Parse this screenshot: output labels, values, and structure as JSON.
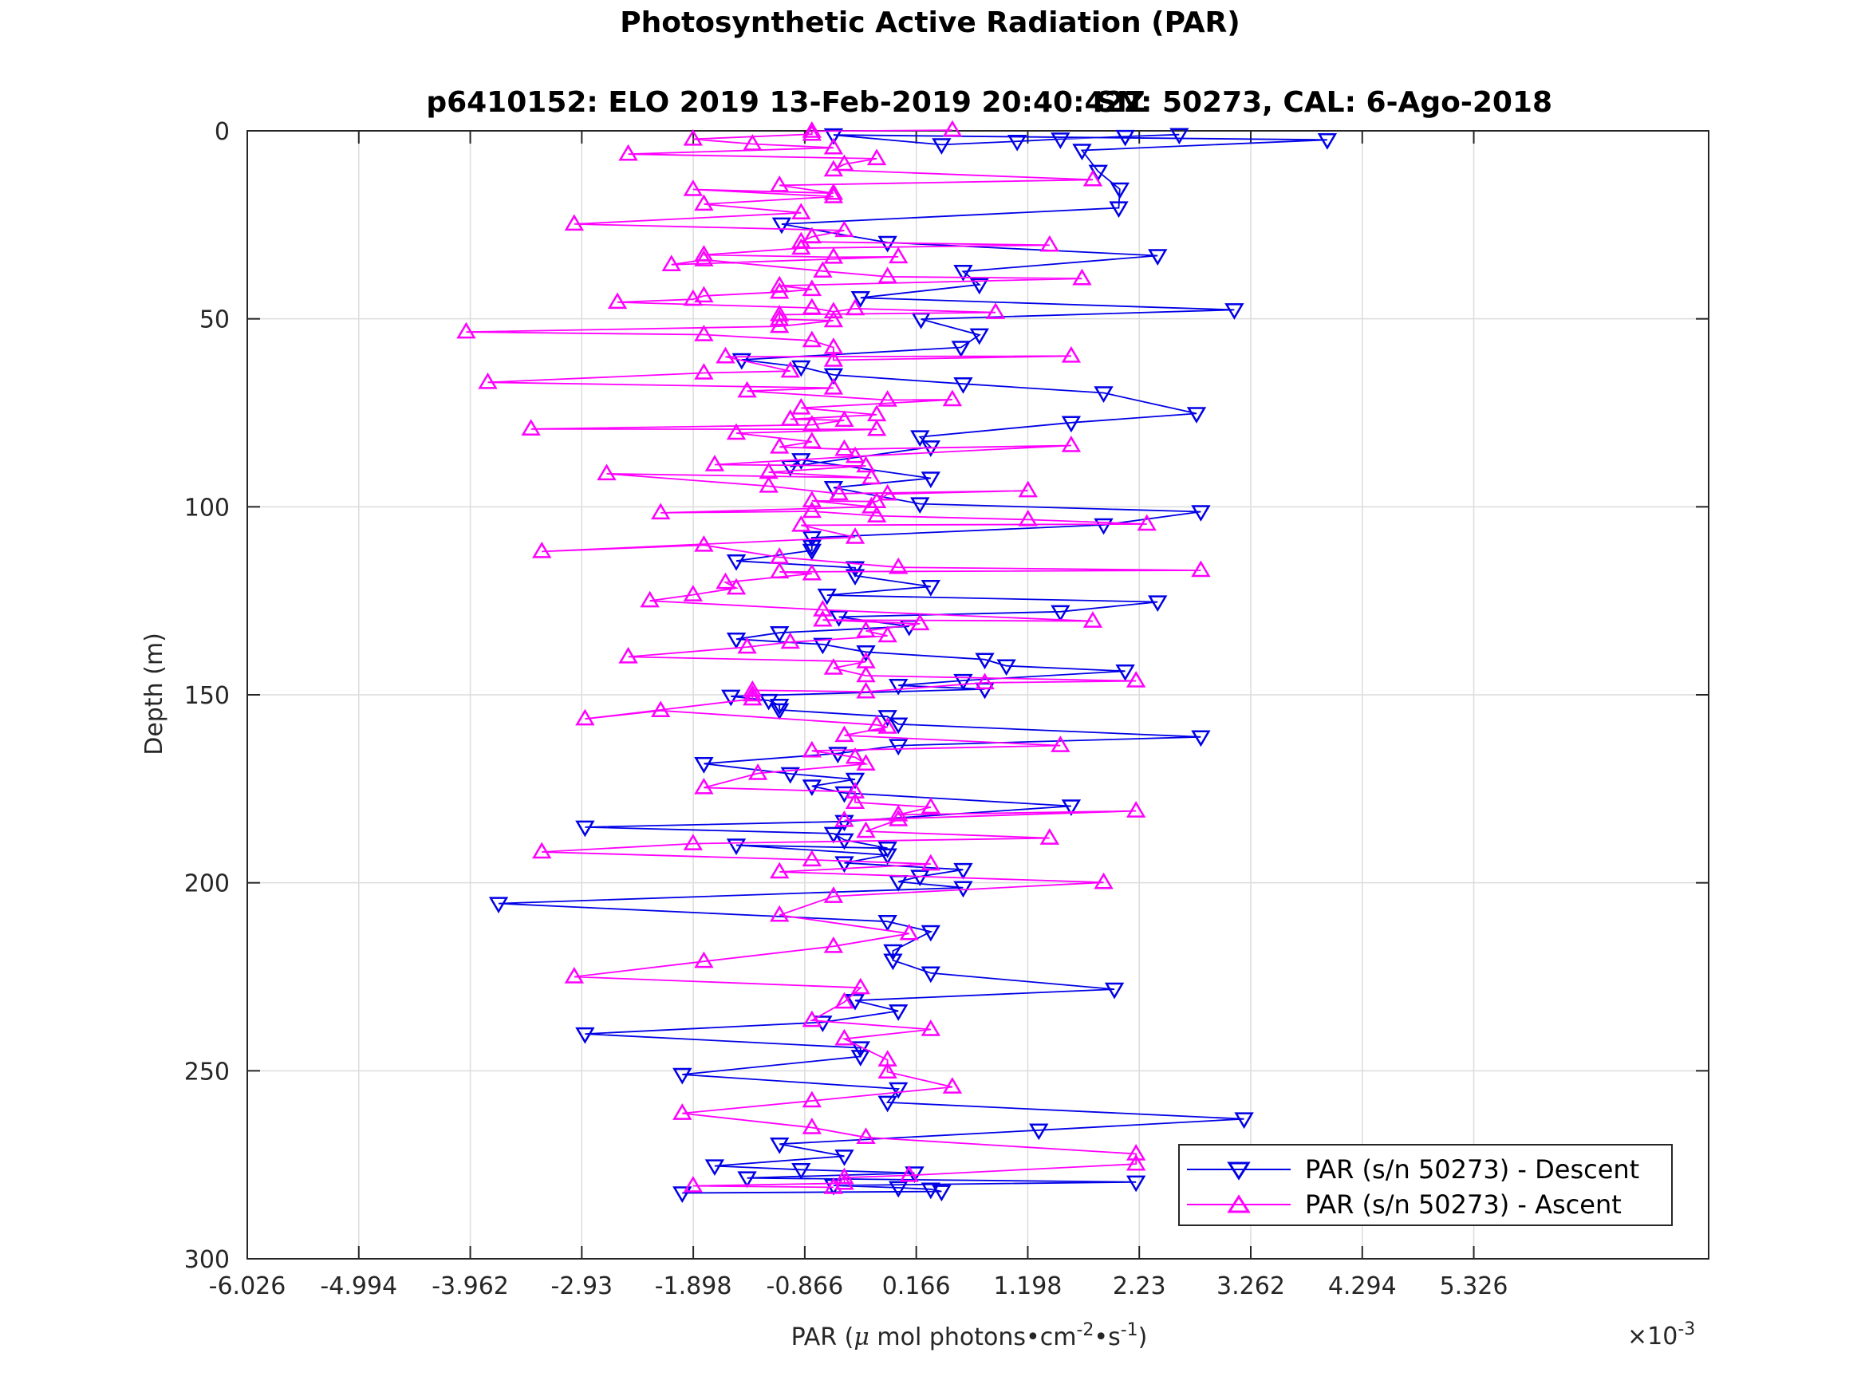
{
  "chart_data": {
    "type": "line",
    "title": "Photosynthetic Active Radiation (PAR)",
    "subtitle_left": "p6410152: ELO 2019 13-Feb-2019 20:40:42Z",
    "subtitle_right": "SN: 50273, CAL: 6-Ago-2018",
    "xlabel_prefix": "PAR (",
    "xlabel_mu": "μ",
    "xlabel_mid": " mol photons•cm",
    "xlabel_exp1": "-2",
    "xlabel_mid2": "•s",
    "xlabel_exp2": "-1",
    "xlabel_suffix": ")",
    "x_multiplier_base": "×10",
    "x_multiplier_exp": "-3",
    "ylabel": "Depth (m)",
    "xlim": [
      -6.026,
      7.5
    ],
    "ylim": [
      0,
      300
    ],
    "y_reversed": true,
    "grid": true,
    "legend_position": "bottom-right",
    "x_ticks": [
      -6.026,
      -4.994,
      -3.962,
      -2.93,
      -1.898,
      -0.866,
      0.166,
      1.198,
      2.23,
      3.262,
      4.294,
      5.326
    ],
    "x_tick_labels": [
      "-6.026",
      "-4.994",
      "-3.962",
      "-2.93",
      "-1.898",
      "-0.866",
      "0.166",
      "1.198",
      "2.23",
      "3.262",
      "4.294",
      "5.326"
    ],
    "y_ticks": [
      0,
      50,
      100,
      150,
      200,
      250,
      300
    ],
    "y_tick_labels": [
      "0",
      "50",
      "100",
      "150",
      "200",
      "250",
      "300"
    ],
    "series": [
      {
        "name": "PAR (s/n 50273) - Descent",
        "color": "#0000e6",
        "marker": "triangle-down",
        "points": [
          [
            2.6,
            1
          ],
          [
            2.1,
            1.5
          ],
          [
            1.5,
            2.2
          ],
          [
            1.1,
            2.8
          ],
          [
            0.4,
            3.7
          ],
          [
            -0.6,
            1.1
          ],
          [
            3.97,
            2.4
          ],
          [
            1.7,
            5.2
          ],
          [
            1.85,
            10.8
          ],
          [
            2.05,
            15.5
          ],
          [
            2.04,
            20.5
          ],
          [
            -1.08,
            24.8
          ],
          [
            -0.1,
            29.7
          ],
          [
            2.4,
            33.2
          ],
          [
            0.6,
            37.4
          ],
          [
            0.75,
            40.9
          ],
          [
            -0.35,
            44.4
          ],
          [
            3.11,
            47.6
          ],
          [
            0.21,
            50.1
          ],
          [
            0.75,
            54.3
          ],
          [
            0.58,
            57.6
          ],
          [
            -1.45,
            60.9
          ],
          [
            -0.9,
            62.8
          ],
          [
            -0.6,
            64.9
          ],
          [
            0.6,
            67.3
          ],
          [
            1.9,
            69.7
          ],
          [
            2.76,
            75.2
          ],
          [
            1.6,
            77.6
          ],
          [
            0.2,
            81.4
          ],
          [
            0.3,
            84.1
          ],
          [
            -1.0,
            89.3
          ],
          [
            -0.9,
            87.5
          ],
          [
            0.3,
            92.4
          ],
          [
            -0.6,
            94.9
          ],
          [
            0.2,
            99.2
          ],
          [
            2.8,
            101.3
          ],
          [
            1.9,
            104.8
          ],
          [
            -0.8,
            108.2
          ],
          [
            -0.8,
            110.5
          ],
          [
            -0.8,
            111.6
          ],
          [
            -1.5,
            114.4
          ],
          [
            -0.4,
            116.2
          ],
          [
            -0.4,
            118.3
          ],
          [
            0.3,
            121.2
          ],
          [
            -0.66,
            123.5
          ],
          [
            2.4,
            125.3
          ],
          [
            1.5,
            127.9
          ],
          [
            -0.55,
            129.3
          ],
          [
            0.1,
            131.8
          ],
          [
            -1.1,
            133.5
          ],
          [
            -1.5,
            135.2
          ],
          [
            -0.7,
            136.6
          ],
          [
            -0.3,
            138.6
          ],
          [
            0.8,
            140.6
          ],
          [
            1.0,
            142.3
          ],
          [
            2.1,
            143.7
          ],
          [
            0.6,
            146.2
          ],
          [
            0.0,
            147.5
          ],
          [
            0.8,
            148.5
          ],
          [
            -1.55,
            150.4
          ],
          [
            -1.2,
            151.5
          ],
          [
            -1.1,
            152.8
          ],
          [
            -1.1,
            154.0
          ],
          [
            -0.1,
            155.8
          ],
          [
            0.0,
            157.8
          ],
          [
            2.8,
            161.2
          ],
          [
            0.0,
            163.5
          ],
          [
            -0.56,
            165.6
          ],
          [
            -1.8,
            168.3
          ],
          [
            -1.0,
            171.0
          ],
          [
            -0.4,
            172.5
          ],
          [
            -0.8,
            174.3
          ],
          [
            -0.5,
            176.1
          ],
          [
            1.6,
            179.6
          ],
          [
            -0.5,
            183.7
          ],
          [
            -2.9,
            185.2
          ],
          [
            -0.6,
            186.9
          ],
          [
            -0.5,
            188.6
          ],
          [
            -0.1,
            190.8
          ],
          [
            -1.5,
            190.0
          ],
          [
            -0.1,
            192.6
          ],
          [
            -0.5,
            194.7
          ],
          [
            0.6,
            196.5
          ],
          [
            0.2,
            198.3
          ],
          [
            0.0,
            199.7
          ],
          [
            0.6,
            201.3
          ],
          [
            -3.7,
            205.5
          ],
          [
            -0.1,
            210.3
          ],
          [
            0.3,
            213.0
          ],
          [
            -0.05,
            218.1
          ],
          [
            -0.05,
            220.6
          ],
          [
            0.3,
            224.0
          ],
          [
            2.0,
            228.3
          ],
          [
            -0.4,
            231.3
          ],
          [
            0.0,
            234.1
          ],
          [
            -0.7,
            237.1
          ],
          [
            -2.9,
            240.2
          ],
          [
            -0.35,
            243.9
          ],
          [
            -0.35,
            246.2
          ],
          [
            -2.0,
            251.0
          ],
          [
            0.0,
            254.8
          ],
          [
            -0.1,
            258.4
          ],
          [
            3.2,
            262.8
          ],
          [
            1.3,
            265.8
          ],
          [
            -1.1,
            269.5
          ],
          [
            -0.5,
            272.7
          ],
          [
            -1.7,
            275.3
          ],
          [
            -0.9,
            276.3
          ],
          [
            0.15,
            277.2
          ],
          [
            -1.4,
            278.5
          ],
          [
            2.2,
            279.6
          ],
          [
            -0.6,
            280.5
          ],
          [
            0.0,
            281.1
          ],
          [
            0.3,
            281.5
          ],
          [
            0.4,
            282.1
          ],
          [
            -2.0,
            282.5
          ]
        ]
      },
      {
        "name": "PAR (s/n 50273) - Ascent",
        "color": "#ff00ff",
        "marker": "triangle-up",
        "points": [
          [
            0.5,
            -0.2
          ],
          [
            -0.8,
            0.1
          ],
          [
            -0.8,
            0.9
          ],
          [
            -1.9,
            2.2
          ],
          [
            -1.35,
            3.5
          ],
          [
            -0.6,
            4.5
          ],
          [
            -2.5,
            6.2
          ],
          [
            -0.2,
            7.4
          ],
          [
            -0.5,
            8.9
          ],
          [
            -0.6,
            10.4
          ],
          [
            1.8,
            13.0
          ],
          [
            -1.1,
            14.5
          ],
          [
            -0.6,
            16.6
          ],
          [
            -1.9,
            15.6
          ],
          [
            -0.6,
            17.5
          ],
          [
            -1.8,
            19.5
          ],
          [
            -0.9,
            21.8
          ],
          [
            -3.0,
            24.8
          ],
          [
            -0.5,
            26.5
          ],
          [
            -0.8,
            28.2
          ],
          [
            -0.9,
            29.5
          ],
          [
            1.4,
            30.4
          ],
          [
            -0.9,
            31.2
          ],
          [
            -1.8,
            33.0
          ],
          [
            -0.6,
            33.6
          ],
          [
            0.0,
            33.5
          ],
          [
            -2.1,
            35.6
          ],
          [
            -1.8,
            34.3
          ],
          [
            -0.7,
            37.3
          ],
          [
            -0.1,
            38.8
          ],
          [
            1.7,
            39.3
          ],
          [
            -1.1,
            41.2
          ],
          [
            -0.8,
            42.2
          ],
          [
            -1.1,
            42.9
          ],
          [
            -1.8,
            43.9
          ],
          [
            -1.9,
            44.8
          ],
          [
            -2.6,
            45.6
          ],
          [
            -0.8,
            47.1
          ],
          [
            -0.6,
            48.1
          ],
          [
            -0.4,
            47.3
          ],
          [
            0.9,
            48.3
          ],
          [
            -1.1,
            48.9
          ],
          [
            -1.1,
            50.1
          ],
          [
            -0.6,
            50.5
          ],
          [
            -1.1,
            52.0
          ],
          [
            -4.0,
            53.5
          ],
          [
            -1.8,
            54.2
          ],
          [
            -0.8,
            55.8
          ],
          [
            -0.6,
            57.6
          ],
          [
            -0.6,
            61.0
          ],
          [
            1.6,
            59.9
          ],
          [
            -1.6,
            60.1
          ],
          [
            -1.0,
            63.9
          ],
          [
            -1.8,
            64.4
          ],
          [
            -3.8,
            66.9
          ],
          [
            -0.6,
            68.4
          ],
          [
            -1.4,
            69.2
          ],
          [
            -0.1,
            71.6
          ],
          [
            0.5,
            71.5
          ],
          [
            -0.9,
            73.7
          ],
          [
            -0.2,
            75.5
          ],
          [
            -1.0,
            76.7
          ],
          [
            -0.5,
            77.0
          ],
          [
            -0.8,
            78.2
          ],
          [
            -3.4,
            79.3
          ],
          [
            -0.2,
            79.4
          ],
          [
            -1.5,
            80.4
          ],
          [
            -0.8,
            82.7
          ],
          [
            -1.1,
            84.1
          ],
          [
            -0.5,
            84.7
          ],
          [
            1.6,
            83.7
          ],
          [
            -0.4,
            86.6
          ],
          [
            -1.7,
            88.8
          ],
          [
            -0.3,
            89.1
          ],
          [
            -1.2,
            90.8
          ],
          [
            -0.25,
            92.3
          ],
          [
            -2.7,
            91.2
          ],
          [
            -1.2,
            94.5
          ],
          [
            -0.55,
            96.5
          ],
          [
            1.2,
            95.7
          ],
          [
            -0.1,
            96.6
          ],
          [
            -0.2,
            98.6
          ],
          [
            -0.8,
            98.4
          ],
          [
            -0.25,
            100.0
          ],
          [
            -2.2,
            101.6
          ],
          [
            -0.8,
            101.2
          ],
          [
            -0.2,
            102.4
          ],
          [
            1.2,
            103.4
          ],
          [
            2.3,
            104.6
          ],
          [
            -0.9,
            104.9
          ],
          [
            -0.4,
            108.1
          ],
          [
            -3.3,
            111.9
          ],
          [
            -1.8,
            110.2
          ],
          [
            -1.1,
            113.4
          ],
          [
            0.0,
            116.1
          ],
          [
            2.8,
            116.9
          ],
          [
            -1.1,
            117.3
          ],
          [
            -0.8,
            117.8
          ],
          [
            -1.6,
            120.1
          ],
          [
            -1.5,
            121.6
          ],
          [
            -1.9,
            123.4
          ],
          [
            -2.3,
            125.0
          ],
          [
            -0.7,
            127.4
          ],
          [
            1.8,
            130.4
          ],
          [
            -0.7,
            130.1
          ],
          [
            0.2,
            131.1
          ],
          [
            -0.3,
            133.0
          ],
          [
            -0.1,
            134.3
          ],
          [
            -1.0,
            136.0
          ],
          [
            -1.4,
            137.3
          ],
          [
            -2.5,
            139.9
          ],
          [
            -0.3,
            141.2
          ],
          [
            -0.6,
            142.9
          ],
          [
            -0.3,
            144.9
          ],
          [
            2.2,
            146.3
          ],
          [
            0.8,
            146.8
          ],
          [
            -0.3,
            149.2
          ],
          [
            -1.35,
            148.8
          ],
          [
            -1.35,
            150.0
          ],
          [
            -1.35,
            151.1
          ],
          [
            -2.9,
            156.4
          ],
          [
            -2.2,
            154.2
          ],
          [
            -0.2,
            158.0
          ],
          [
            -0.1,
            158.6
          ],
          [
            -0.5,
            160.8
          ],
          [
            1.5,
            163.5
          ],
          [
            -0.8,
            164.9
          ],
          [
            -0.4,
            166.6
          ],
          [
            -0.3,
            168.4
          ],
          [
            -1.3,
            170.9
          ],
          [
            -1.8,
            174.7
          ],
          [
            -0.4,
            175.8
          ],
          [
            -0.4,
            178.6
          ],
          [
            0.3,
            179.9
          ],
          [
            0.0,
            181.9
          ],
          [
            2.2,
            180.9
          ],
          [
            -0.5,
            183.4
          ],
          [
            0.0,
            183.2
          ],
          [
            -0.3,
            186.3
          ],
          [
            1.4,
            188.1
          ],
          [
            -1.9,
            189.6
          ],
          [
            -3.3,
            191.8
          ],
          [
            -0.8,
            193.9
          ],
          [
            0.3,
            195.0
          ],
          [
            -1.1,
            197.1
          ],
          [
            1.9,
            199.9
          ],
          [
            -0.6,
            203.6
          ],
          [
            -1.1,
            208.6
          ],
          [
            0.1,
            213.5
          ],
          [
            -0.6,
            216.9
          ],
          [
            -1.8,
            220.9
          ],
          [
            -3.0,
            225.0
          ],
          [
            -0.35,
            227.9
          ],
          [
            -0.5,
            231.7
          ],
          [
            -0.8,
            236.6
          ],
          [
            0.3,
            239.0
          ],
          [
            -0.5,
            241.5
          ],
          [
            -0.1,
            247.1
          ],
          [
            -0.1,
            250.3
          ],
          [
            0.5,
            254.3
          ],
          [
            -0.8,
            258.0
          ],
          [
            -2.0,
            261.3
          ],
          [
            -0.8,
            265.1
          ],
          [
            -0.3,
            267.7
          ],
          [
            2.2,
            272.1
          ],
          [
            2.2,
            274.8
          ],
          [
            0.1,
            277.8
          ],
          [
            -0.5,
            278.4
          ],
          [
            -0.5,
            279.9
          ],
          [
            -1.9,
            280.6
          ],
          [
            -0.6,
            281.0
          ]
        ]
      }
    ]
  }
}
